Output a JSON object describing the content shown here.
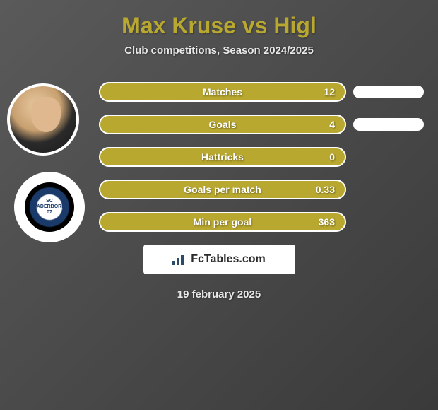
{
  "title": "Max Kruse vs Higl",
  "subtitle": "Club competitions, Season 2024/2025",
  "club_badge_text": "SC PADERBORN 07",
  "stats": [
    {
      "label": "Matches",
      "value": "12",
      "show_right_bar": true
    },
    {
      "label": "Goals",
      "value": "4",
      "show_right_bar": true
    },
    {
      "label": "Hattricks",
      "value": "0",
      "show_right_bar": false
    },
    {
      "label": "Goals per match",
      "value": "0.33",
      "show_right_bar": false
    },
    {
      "label": "Min per goal",
      "value": "363",
      "show_right_bar": false
    }
  ],
  "footer_brand": "FcTables.com",
  "date": "19 february 2025",
  "colors": {
    "accent": "#b8a830",
    "bar_border": "#ffffff",
    "text_light": "#e8e8e8",
    "background_start": "#5a5a5a",
    "background_end": "#3a3a3a"
  }
}
